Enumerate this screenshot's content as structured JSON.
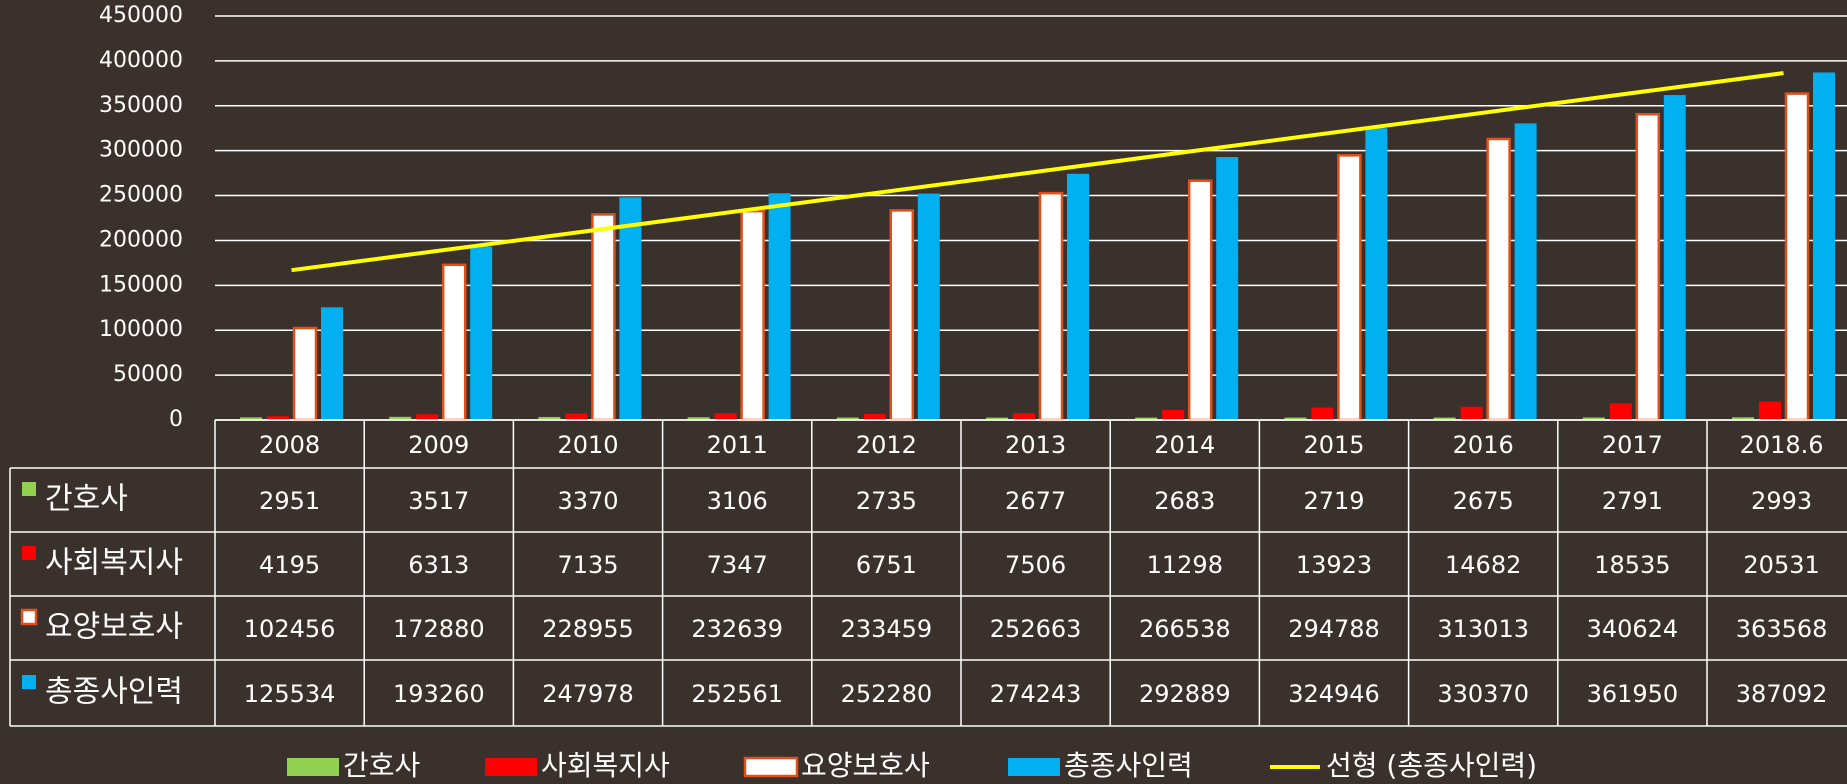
{
  "chart_data": {
    "type": "bar",
    "categories": [
      "2008",
      "2009",
      "2010",
      "2011",
      "2012",
      "2013",
      "2014",
      "2015",
      "2016",
      "2017",
      "2018.6"
    ],
    "series": [
      {
        "name": "간호사",
        "color": "#92d050",
        "values": [
          2951,
          3517,
          3370,
          3106,
          2735,
          2677,
          2683,
          2719,
          2675,
          2791,
          2993
        ]
      },
      {
        "name": "사회복지사",
        "color": "#ff0000",
        "values": [
          4195,
          6313,
          7135,
          7347,
          6751,
          7506,
          11298,
          13923,
          14682,
          18535,
          20531
        ]
      },
      {
        "name": "요양보호사",
        "color": "#ffffff",
        "border": "#e0501a",
        "values": [
          102456,
          172880,
          228955,
          232639,
          233459,
          252663,
          266538,
          294788,
          313013,
          340624,
          363568
        ]
      },
      {
        "name": "총종사인력",
        "color": "#00b0f0",
        "values": [
          125534,
          193260,
          247978,
          252561,
          252280,
          274243,
          292889,
          324946,
          330370,
          361950,
          387092
        ]
      }
    ],
    "trendline": {
      "name": "선형 (총종사인력)",
      "series": 3,
      "color": "#ffff00"
    },
    "ylim": [
      0,
      450000
    ],
    "yticks": [
      0,
      50000,
      100000,
      150000,
      200000,
      250000,
      300000,
      350000,
      400000,
      450000
    ],
    "grid": true
  }
}
